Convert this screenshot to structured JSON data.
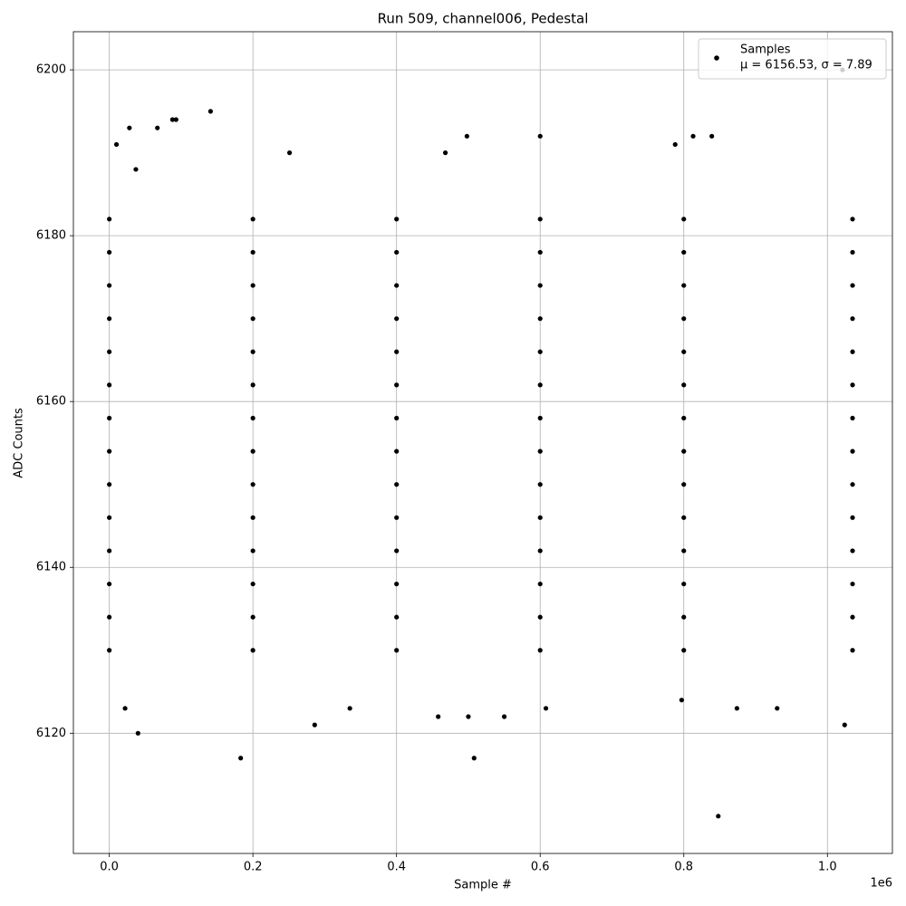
{
  "chart_data": {
    "type": "scatter",
    "title": "Run 509, channel006, Pedestal",
    "x_label": "Sample #",
    "y_label": "ADC Counts",
    "x_offset_label": "1e6",
    "xlim": [
      -50000,
      1090500
    ],
    "ylim": [
      6105.5,
      6204.6
    ],
    "xticks": [
      {
        "value": 0,
        "label": "0.0"
      },
      {
        "value": 200000,
        "label": "0.2"
      },
      {
        "value": 400000,
        "label": "0.4"
      },
      {
        "value": 600000,
        "label": "0.6"
      },
      {
        "value": 800000,
        "label": "0.8"
      },
      {
        "value": 1000000,
        "label": "1.0"
      }
    ],
    "yticks": [
      6120,
      6140,
      6160,
      6180,
      6200
    ],
    "grid": true,
    "legend": "upper right",
    "legend_stats": "μ = 6156.53, σ = 7.89",
    "series": [
      {
        "name": "Samples",
        "color": "#000000",
        "x": [
          0,
          200000,
          400000,
          600000,
          800000,
          1035000,
          0,
          200000,
          400000,
          600000,
          800000,
          1035000,
          0,
          200000,
          400000,
          600000,
          800000,
          1035000,
          0,
          200000,
          400000,
          600000,
          800000,
          1035000,
          0,
          200000,
          400000,
          600000,
          800000,
          1035000,
          0,
          200000,
          400000,
          600000,
          800000,
          1035000,
          0,
          200000,
          400000,
          600000,
          800000,
          1035000,
          0,
          200000,
          400000,
          600000,
          800000,
          1035000,
          0,
          200000,
          400000,
          600000,
          800000,
          1035000,
          0,
          200000,
          400000,
          600000,
          800000,
          1035000,
          0,
          200000,
          400000,
          600000,
          800000,
          1035000,
          0,
          200000,
          400000,
          600000,
          800000,
          1035000,
          0,
          200000,
          400000,
          600000,
          800000,
          1035000,
          0,
          200000,
          400000,
          600000,
          800000,
          1035000,
          10000,
          28000,
          37000,
          67000,
          88000,
          93000,
          141000,
          22000,
          40000,
          183000,
          286000,
          498000,
          468000,
          600000,
          508000,
          500000,
          550000,
          458000,
          848000,
          1024000,
          1021000,
          839000,
          813000,
          788000,
          251000,
          608000,
          335000,
          930000,
          874000,
          797000
        ],
        "values": [
          6130,
          6130,
          6130,
          6130,
          6130,
          6130,
          6134,
          6134,
          6134,
          6134,
          6134,
          6134,
          6138,
          6138,
          6138,
          6138,
          6138,
          6138,
          6142,
          6142,
          6142,
          6142,
          6142,
          6142,
          6146,
          6146,
          6146,
          6146,
          6146,
          6146,
          6150,
          6150,
          6150,
          6150,
          6150,
          6150,
          6154,
          6154,
          6154,
          6154,
          6154,
          6154,
          6158,
          6158,
          6158,
          6158,
          6158,
          6158,
          6162,
          6162,
          6162,
          6162,
          6162,
          6162,
          6166,
          6166,
          6166,
          6166,
          6166,
          6166,
          6170,
          6170,
          6170,
          6170,
          6170,
          6170,
          6174,
          6174,
          6174,
          6174,
          6174,
          6174,
          6178,
          6178,
          6178,
          6178,
          6178,
          6178,
          6182,
          6182,
          6182,
          6182,
          6182,
          6182,
          6191,
          6193,
          6188,
          6193,
          6194,
          6194,
          6195,
          6123,
          6120,
          6117,
          6121,
          6192,
          6190,
          6192,
          6117,
          6122,
          6122,
          6122,
          6110,
          6121,
          6200,
          6192,
          6192,
          6191,
          6190,
          6123,
          6123,
          6123,
          6123,
          6124
        ]
      }
    ]
  }
}
